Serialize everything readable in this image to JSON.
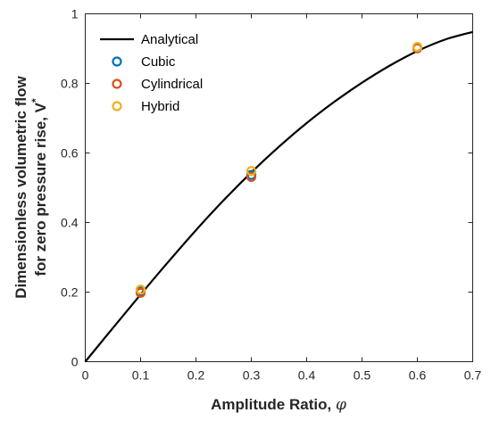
{
  "chart_data": {
    "type": "line",
    "xlabel": "Amplitude Ratio, ",
    "xlabel_symbol": "φ",
    "ylabel_line1": "Dimensionless volumetric flow",
    "ylabel_line2": "for zero pressure rise, V",
    "ylabel_sup": "*",
    "xlim": [
      0,
      0.7
    ],
    "ylim": [
      0,
      1
    ],
    "xticks": [
      "0",
      "0.1",
      "0.2",
      "0.3",
      "0.4",
      "0.5",
      "0.6",
      "0.7"
    ],
    "yticks": [
      "0",
      "0.2",
      "0.4",
      "0.6",
      "0.8",
      "1"
    ],
    "grid": false,
    "legend_position": "top-left",
    "series": [
      {
        "name": "Analytical",
        "kind": "line",
        "color": "#000000",
        "x": [
          0,
          0.05,
          0.1,
          0.15,
          0.2,
          0.25,
          0.3,
          0.35,
          0.4,
          0.45,
          0.5,
          0.55,
          0.6,
          0.65,
          0.7
        ],
        "y": [
          0,
          0.097,
          0.193,
          0.287,
          0.378,
          0.464,
          0.544,
          0.618,
          0.686,
          0.747,
          0.802,
          0.851,
          0.893,
          0.926,
          0.948
        ]
      },
      {
        "name": "Cubic",
        "kind": "marker",
        "color": "#0072BD",
        "x": [
          0.1,
          0.3,
          0.6
        ],
        "y": [
          0.203,
          0.537,
          0.902
        ]
      },
      {
        "name": "Cylindrical",
        "kind": "marker",
        "color": "#D95319",
        "x": [
          0.1,
          0.3,
          0.6
        ],
        "y": [
          0.198,
          0.531,
          0.901
        ]
      },
      {
        "name": "Hybrid",
        "kind": "marker",
        "color": "#EDB120",
        "x": [
          0.1,
          0.3,
          0.6
        ],
        "y": [
          0.207,
          0.548,
          0.905
        ]
      }
    ]
  }
}
